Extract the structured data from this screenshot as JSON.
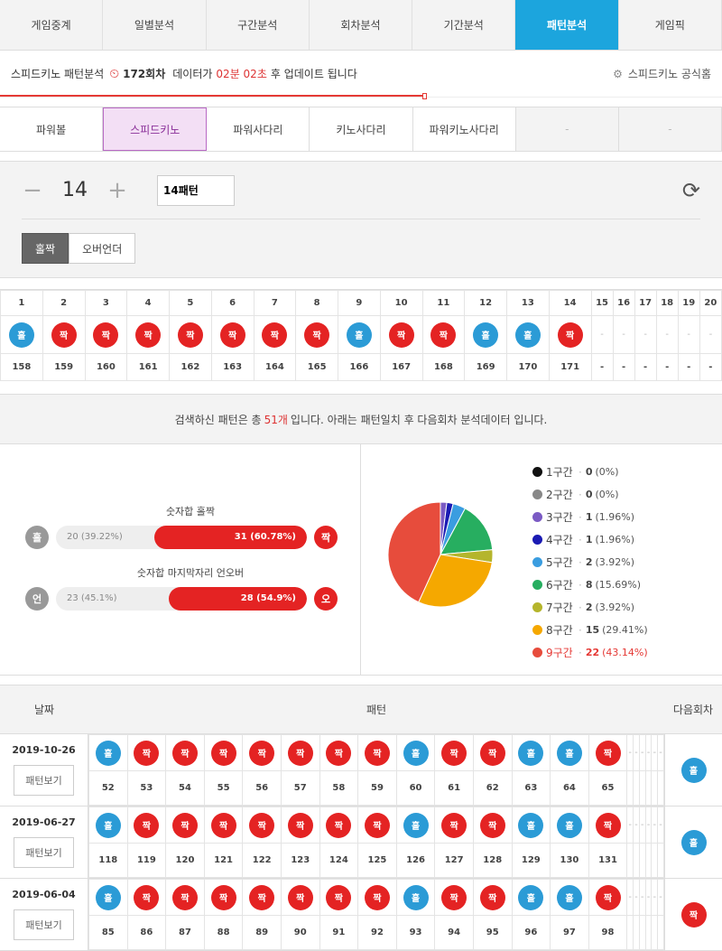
{
  "nav": {
    "tabs": [
      "게임중계",
      "일별분석",
      "구간분석",
      "회차분석",
      "기간분석",
      "패턴분석",
      "게임픽"
    ],
    "active_index": 5
  },
  "info": {
    "title": "스피드키노 패턴분석",
    "round": "172회차",
    "text1": "데이터가",
    "time": "02분 02초",
    "text2": "후 업데이트 됩니다",
    "official": "스피드키노 공식홈"
  },
  "games": [
    "파워볼",
    "스피드키노",
    "파워사다리",
    "키노사다리",
    "파워키노사다리",
    "-",
    "-"
  ],
  "control": {
    "count": "14",
    "input_value": "14패턴",
    "type_buttons": [
      "홀짝",
      "오버언더"
    ]
  },
  "pattern": {
    "headers": [
      "1",
      "2",
      "3",
      "4",
      "5",
      "6",
      "7",
      "8",
      "9",
      "10",
      "11",
      "12",
      "13",
      "14",
      "15",
      "16",
      "17",
      "18",
      "19",
      "20"
    ],
    "balls": [
      "홀",
      "짝",
      "짝",
      "짝",
      "짝",
      "짝",
      "짝",
      "짝",
      "홀",
      "짝",
      "짝",
      "홀",
      "홀",
      "짝",
      "-",
      "-",
      "-",
      "-",
      "-",
      "-"
    ],
    "rounds": [
      "158",
      "159",
      "160",
      "161",
      "162",
      "163",
      "164",
      "165",
      "166",
      "167",
      "168",
      "169",
      "170",
      "171",
      "-",
      "-",
      "-",
      "-",
      "-",
      "-"
    ]
  },
  "summary": {
    "before": "검색하신 패턴은 총",
    "count": "51개",
    "after": "입니다. 아래는 패턴일치 후 다음회차 분석데이터 입니다."
  },
  "bars": [
    {
      "title": "숫자합 홀짝",
      "left_icon": "홀",
      "left_text": "20 (39.22%)",
      "right_text": "31 (60.78%)",
      "right_icon": "짝",
      "right_value": 60.78
    },
    {
      "title": "숫자합 마지막자리 언오버",
      "left_icon": "언",
      "left_text": "23 (45.1%)",
      "right_text": "28 (54.9%)",
      "right_icon": "오",
      "right_value": 54.9
    }
  ],
  "pie": {
    "items": [
      {
        "label": "1구간",
        "value": "0",
        "pct": "(0%)",
        "color": "#111111",
        "n": 0
      },
      {
        "label": "2구간",
        "value": "0",
        "pct": "(0%)",
        "color": "#888888",
        "n": 0
      },
      {
        "label": "3구간",
        "value": "1",
        "pct": "(1.96%)",
        "color": "#7b5bc4",
        "n": 1
      },
      {
        "label": "4구간",
        "value": "1",
        "pct": "(1.96%)",
        "color": "#1b1bb3",
        "n": 1
      },
      {
        "label": "5구간",
        "value": "2",
        "pct": "(3.92%)",
        "color": "#3a9de0",
        "n": 2
      },
      {
        "label": "6구간",
        "value": "8",
        "pct": "(15.69%)",
        "color": "#27ae60",
        "n": 8
      },
      {
        "label": "7구간",
        "value": "2",
        "pct": "(3.92%)",
        "color": "#b5b52c",
        "n": 2
      },
      {
        "label": "8구간",
        "value": "15",
        "pct": "(29.41%)",
        "color": "#f5a800",
        "n": 15
      },
      {
        "label": "9구간",
        "value": "22",
        "pct": "(43.14%)",
        "color": "#e74c3c",
        "n": 22
      }
    ],
    "highlight_index": 8
  },
  "history": {
    "headers": {
      "date": "날짜",
      "pattern": "패턴",
      "next": "다음회차"
    },
    "view_label": "패턴보기",
    "rows": [
      {
        "date": "2019-10-26",
        "balls": [
          "홀",
          "짝",
          "짝",
          "짝",
          "짝",
          "짝",
          "짝",
          "짝",
          "홀",
          "짝",
          "짝",
          "홀",
          "홀",
          "짝",
          "-",
          "-",
          "-",
          "-",
          "-",
          "-"
        ],
        "rounds": [
          "52",
          "53",
          "54",
          "55",
          "56",
          "57",
          "58",
          "59",
          "60",
          "61",
          "62",
          "63",
          "64",
          "65",
          "",
          "",
          "",
          "",
          "",
          ""
        ],
        "next": "홀"
      },
      {
        "date": "2019-06-27",
        "balls": [
          "홀",
          "짝",
          "짝",
          "짝",
          "짝",
          "짝",
          "짝",
          "짝",
          "홀",
          "짝",
          "짝",
          "홀",
          "홀",
          "짝",
          "-",
          "-",
          "-",
          "-",
          "-",
          "-"
        ],
        "rounds": [
          "118",
          "119",
          "120",
          "121",
          "122",
          "123",
          "124",
          "125",
          "126",
          "127",
          "128",
          "129",
          "130",
          "131",
          "",
          "",
          "",
          "",
          "",
          ""
        ],
        "next": "홀"
      },
      {
        "date": "2019-06-04",
        "balls": [
          "홀",
          "짝",
          "짝",
          "짝",
          "짝",
          "짝",
          "짝",
          "짝",
          "홀",
          "짝",
          "짝",
          "홀",
          "홀",
          "짝",
          "-",
          "-",
          "-",
          "-",
          "-",
          "-"
        ],
        "rounds": [
          "85",
          "86",
          "87",
          "88",
          "89",
          "90",
          "91",
          "92",
          "93",
          "94",
          "95",
          "96",
          "97",
          "98",
          "",
          "",
          "",
          "",
          "",
          ""
        ],
        "next": "짝"
      }
    ]
  }
}
